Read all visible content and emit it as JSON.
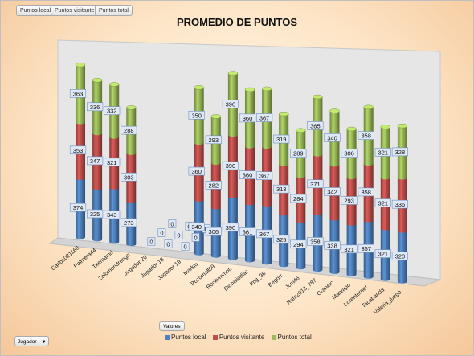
{
  "field_buttons": [
    "Puntos local",
    "Puntos visitante",
    "Puntos total"
  ],
  "valores_label": "Valores",
  "jugador_filter": {
    "label": "Jugador",
    "arrow": "▼"
  },
  "colors": {
    "local": "#4f81bd",
    "visitante": "#c0504d",
    "total": "#9bbb59"
  },
  "chart_data": {
    "type": "bar",
    "title": "PROMEDIO DE PUNTOS",
    "stacked": true,
    "three_d": true,
    "categories": [
      "Carlos021168",
      "Palmera44",
      "Txemamd",
      "Zolomondrongo",
      "Jugador 20",
      "Jugador 18",
      "Jugador 19",
      "Markiu",
      "Pozomall59",
      "Rockymmon",
      "Dionisiodiaz",
      "Img_98",
      "Begorr",
      "Jcm46",
      "Rafa2013_787",
      "Granelc",
      "Marvapo",
      "Lorenternet",
      "Tacabanda",
      "Valeria_juego"
    ],
    "series": [
      {
        "name": "Puntos local",
        "values": [
          374,
          325,
          343,
          273,
          0,
          0,
          0,
          340,
          306,
          390,
          361,
          367,
          325,
          294,
          358,
          338,
          321,
          357,
          321,
          320
        ]
      },
      {
        "name": "Puntos visitante",
        "values": [
          353,
          347,
          321,
          303,
          0,
          0,
          0,
          360,
          282,
          390,
          360,
          367,
          313,
          284,
          371,
          342,
          293,
          358,
          321,
          336
        ]
      },
      {
        "name": "Puntos total",
        "values": [
          363,
          336,
          332,
          288,
          0,
          0,
          0,
          350,
          293,
          390,
          360,
          367,
          319,
          289,
          365,
          340,
          306,
          358,
          321,
          328
        ]
      }
    ],
    "legend": "bottom"
  }
}
